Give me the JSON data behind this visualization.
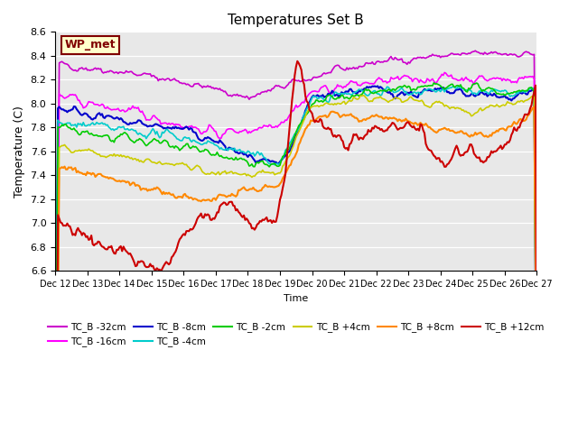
{
  "title": "Temperatures Set B",
  "xlabel": "Time",
  "ylabel": "Temperature (C)",
  "ylim": [
    6.6,
    8.6
  ],
  "xlim": [
    0,
    360
  ],
  "bg_color": "#e8e8e8",
  "annotation_text": "WP_met",
  "annotation_box_color": "#ffffcc",
  "annotation_text_color": "#800000",
  "series": {
    "TC_B -32cm": {
      "color": "#cc00cc",
      "lw": 1.2
    },
    "TC_B -16cm": {
      "color": "#ff00ff",
      "lw": 1.2
    },
    "TC_B -8cm": {
      "color": "#0000cc",
      "lw": 1.5
    },
    "TC_B -4cm": {
      "color": "#00cccc",
      "lw": 1.2
    },
    "TC_B -2cm": {
      "color": "#00cc00",
      "lw": 1.2
    },
    "TC_B +4cm": {
      "color": "#cccc00",
      "lw": 1.2
    },
    "TC_B +8cm": {
      "color": "#ff8800",
      "lw": 1.5
    },
    "TC_B +12cm": {
      "color": "#cc0000",
      "lw": 1.5
    }
  },
  "xtick_labels": [
    "Dec 12",
    "Dec 13",
    "Dec 14",
    "Dec 15",
    "Dec 16",
    "Dec 17",
    "Dec 18",
    "Dec 19",
    "Dec 20",
    "Dec 21",
    "Dec 22",
    "Dec 23",
    "Dec 24",
    "Dec 25",
    "Dec 26",
    "Dec 27"
  ],
  "ytick_vals": [
    6.6,
    6.8,
    7.0,
    7.2,
    7.4,
    7.6,
    7.8,
    8.0,
    8.2,
    8.4,
    8.6
  ]
}
